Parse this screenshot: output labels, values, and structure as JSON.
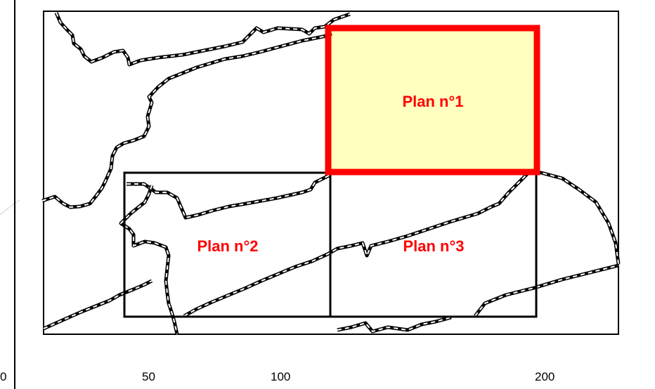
{
  "plans": [
    {
      "label": "Plan n°1",
      "highlighted": true
    },
    {
      "label": "Plan n°2",
      "highlighted": false
    },
    {
      "label": "Plan n°3",
      "highlighted": false
    }
  ],
  "scale_labels": [
    "0",
    "50",
    "100",
    "200"
  ],
  "colors": {
    "highlight_stroke": "#ff0000",
    "highlight_fill": "#ffffc0",
    "label": "#ff0000",
    "grid": "#000000",
    "boundary": "#000000"
  }
}
